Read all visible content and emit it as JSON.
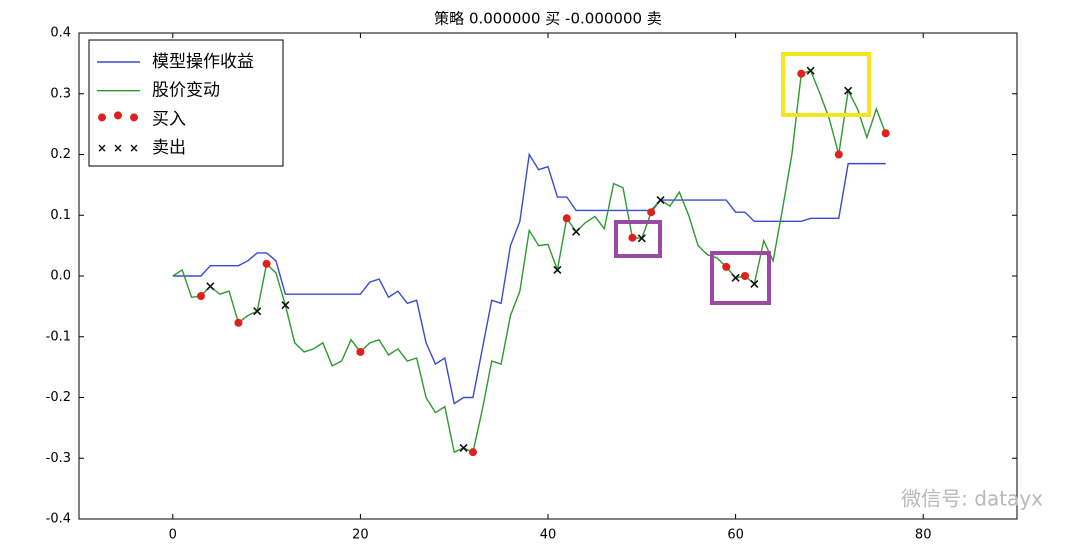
{
  "chart_data": {
    "type": "line",
    "title": "策略 0.000000 买  -0.000000 卖",
    "x": [
      0,
      1,
      2,
      3,
      4,
      5,
      6,
      7,
      8,
      9,
      10,
      11,
      12,
      13,
      14,
      15,
      16,
      17,
      18,
      19,
      20,
      21,
      22,
      23,
      24,
      25,
      26,
      27,
      28,
      29,
      30,
      31,
      32,
      33,
      34,
      35,
      36,
      37,
      38,
      39,
      40,
      41,
      42,
      43,
      44,
      45,
      46,
      47,
      48,
      49,
      50,
      51,
      52,
      53,
      54,
      55,
      56,
      57,
      58,
      59,
      60,
      61,
      62,
      63,
      64,
      65,
      66,
      67,
      68,
      69,
      70,
      71,
      72,
      73,
      74,
      75,
      76
    ],
    "series": [
      {
        "name": "模型操作收益",
        "color": "#3b4bd0",
        "marker": "line",
        "values": [
          0,
          0,
          0,
          0,
          0.017,
          0.017,
          0.017,
          0.017,
          0.025,
          0.038,
          0.038,
          0.025,
          -0.03,
          -0.03,
          -0.03,
          -0.03,
          -0.03,
          -0.03,
          -0.03,
          -0.03,
          -0.03,
          -0.01,
          -0.005,
          -0.035,
          -0.025,
          -0.045,
          -0.04,
          -0.11,
          -0.145,
          -0.135,
          -0.21,
          -0.2,
          -0.2,
          -0.12,
          -0.04,
          -0.045,
          0.05,
          0.09,
          0.2,
          0.175,
          0.18,
          0.13,
          0.13,
          0.108,
          0.108,
          0.108,
          0.108,
          0.108,
          0.108,
          0.108,
          0.108,
          0.108,
          0.125,
          0.125,
          0.125,
          0.125,
          0.125,
          0.125,
          0.125,
          0.125,
          0.105,
          0.105,
          0.09,
          0.09,
          0.09,
          0.09,
          0.09,
          0.09,
          0.095,
          0.095,
          0.095,
          0.095,
          0.185,
          0.185,
          0.185,
          0.185,
          0.185
        ]
      },
      {
        "name": "股价变动",
        "color": "#2e9a2e",
        "marker": "line",
        "values": [
          0,
          0.01,
          -0.035,
          -0.033,
          -0.017,
          -0.03,
          -0.025,
          -0.077,
          -0.065,
          -0.058,
          0.02,
          0.005,
          -0.048,
          -0.11,
          -0.125,
          -0.12,
          -0.11,
          -0.148,
          -0.14,
          -0.105,
          -0.125,
          -0.11,
          -0.105,
          -0.13,
          -0.12,
          -0.14,
          -0.135,
          -0.2,
          -0.225,
          -0.215,
          -0.29,
          -0.283,
          -0.29,
          -0.22,
          -0.14,
          -0.145,
          -0.065,
          -0.025,
          0.075,
          0.05,
          0.052,
          0.01,
          0.095,
          0.073,
          0.088,
          0.098,
          0.078,
          0.152,
          0.145,
          0.063,
          0.062,
          0.105,
          0.125,
          0.115,
          0.138,
          0.1,
          0.05,
          0.035,
          0.03,
          0.015,
          -0.003,
          0.0,
          -0.013,
          0.058,
          0.025,
          0.11,
          0.2,
          0.333,
          0.338,
          0.3,
          0.258,
          0.2,
          0.305,
          0.275,
          0.228,
          0.275,
          0.235
        ]
      },
      {
        "name": "买入",
        "color": "#e0201b",
        "marker": "dot",
        "x": [
          3,
          7,
          10,
          20,
          32,
          42,
          49,
          51,
          59,
          61,
          67,
          71,
          76
        ],
        "values": [
          -0.033,
          -0.077,
          0.02,
          -0.125,
          -0.29,
          0.095,
          0.063,
          0.105,
          0.015,
          0.0,
          0.333,
          0.2,
          0.235
        ]
      },
      {
        "name": "卖出",
        "color": "#111111",
        "marker": "cross",
        "x": [
          4,
          9,
          12,
          31,
          41,
          43,
          50,
          52,
          60,
          62,
          68,
          72
        ],
        "values": [
          -0.017,
          -0.058,
          -0.048,
          -0.283,
          0.01,
          0.073,
          0.062,
          0.125,
          -0.003,
          -0.013,
          0.338,
          0.305
        ]
      }
    ],
    "xlim": [
      -10,
      90
    ],
    "xticks": [
      0,
      20,
      40,
      60,
      80
    ],
    "ylim": [
      -0.4,
      0.4
    ],
    "yticks": [
      -0.4,
      -0.3,
      -0.2,
      -0.1,
      {
        "value": 0,
        "label": "0.0"
      },
      0.1,
      0.2,
      0.3,
      0.4
    ],
    "legend": "upper left",
    "watermark": "微信号: datayx"
  }
}
